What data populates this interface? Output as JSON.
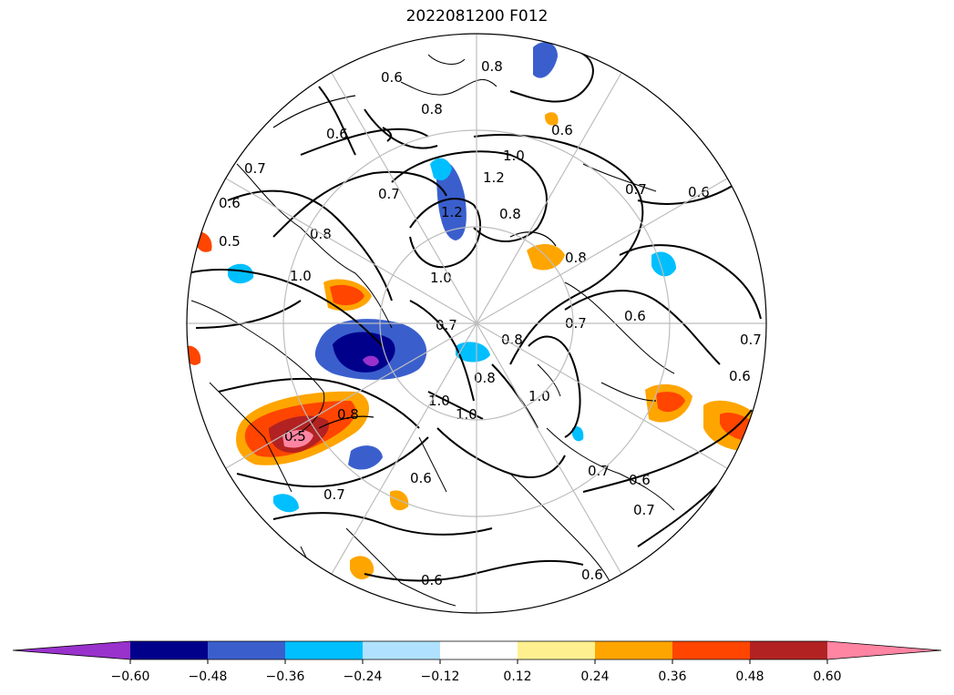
{
  "title": "2022081200 F012",
  "colorbar": {
    "colors": [
      "#9932cc",
      "#00008b",
      "#3a5fcd",
      "#00bfff",
      "#b0e2ff",
      "#ffffff",
      "#fff08f",
      "#ffa500",
      "#ff4500",
      "#b22222",
      "#ff85a2"
    ],
    "ticks": [
      "−0.60",
      "−0.48",
      "−0.36",
      "−0.24",
      "−0.12",
      "0.12",
      "0.24",
      "0.36",
      "0.48",
      "0.60"
    ]
  },
  "contour_labels": [
    "0.8",
    "0.6",
    "0.8",
    "0.6",
    "0.6",
    "1.0",
    "1.2",
    "0.7",
    "0.8",
    "1.2",
    "0.6",
    "0.7",
    "0.6",
    "0.7",
    "1.0",
    "0.8",
    "0.5",
    "0.8",
    "1.0",
    "0.8",
    "0.7",
    "0.6",
    "0.7",
    "0.6",
    "0.8",
    "0.7",
    "1.0",
    "0.8",
    "1.0",
    "1.0",
    "0.6",
    "0.7",
    "0.7",
    "0.6",
    "0.7",
    "0.5",
    "0.6",
    "0.6"
  ]
}
